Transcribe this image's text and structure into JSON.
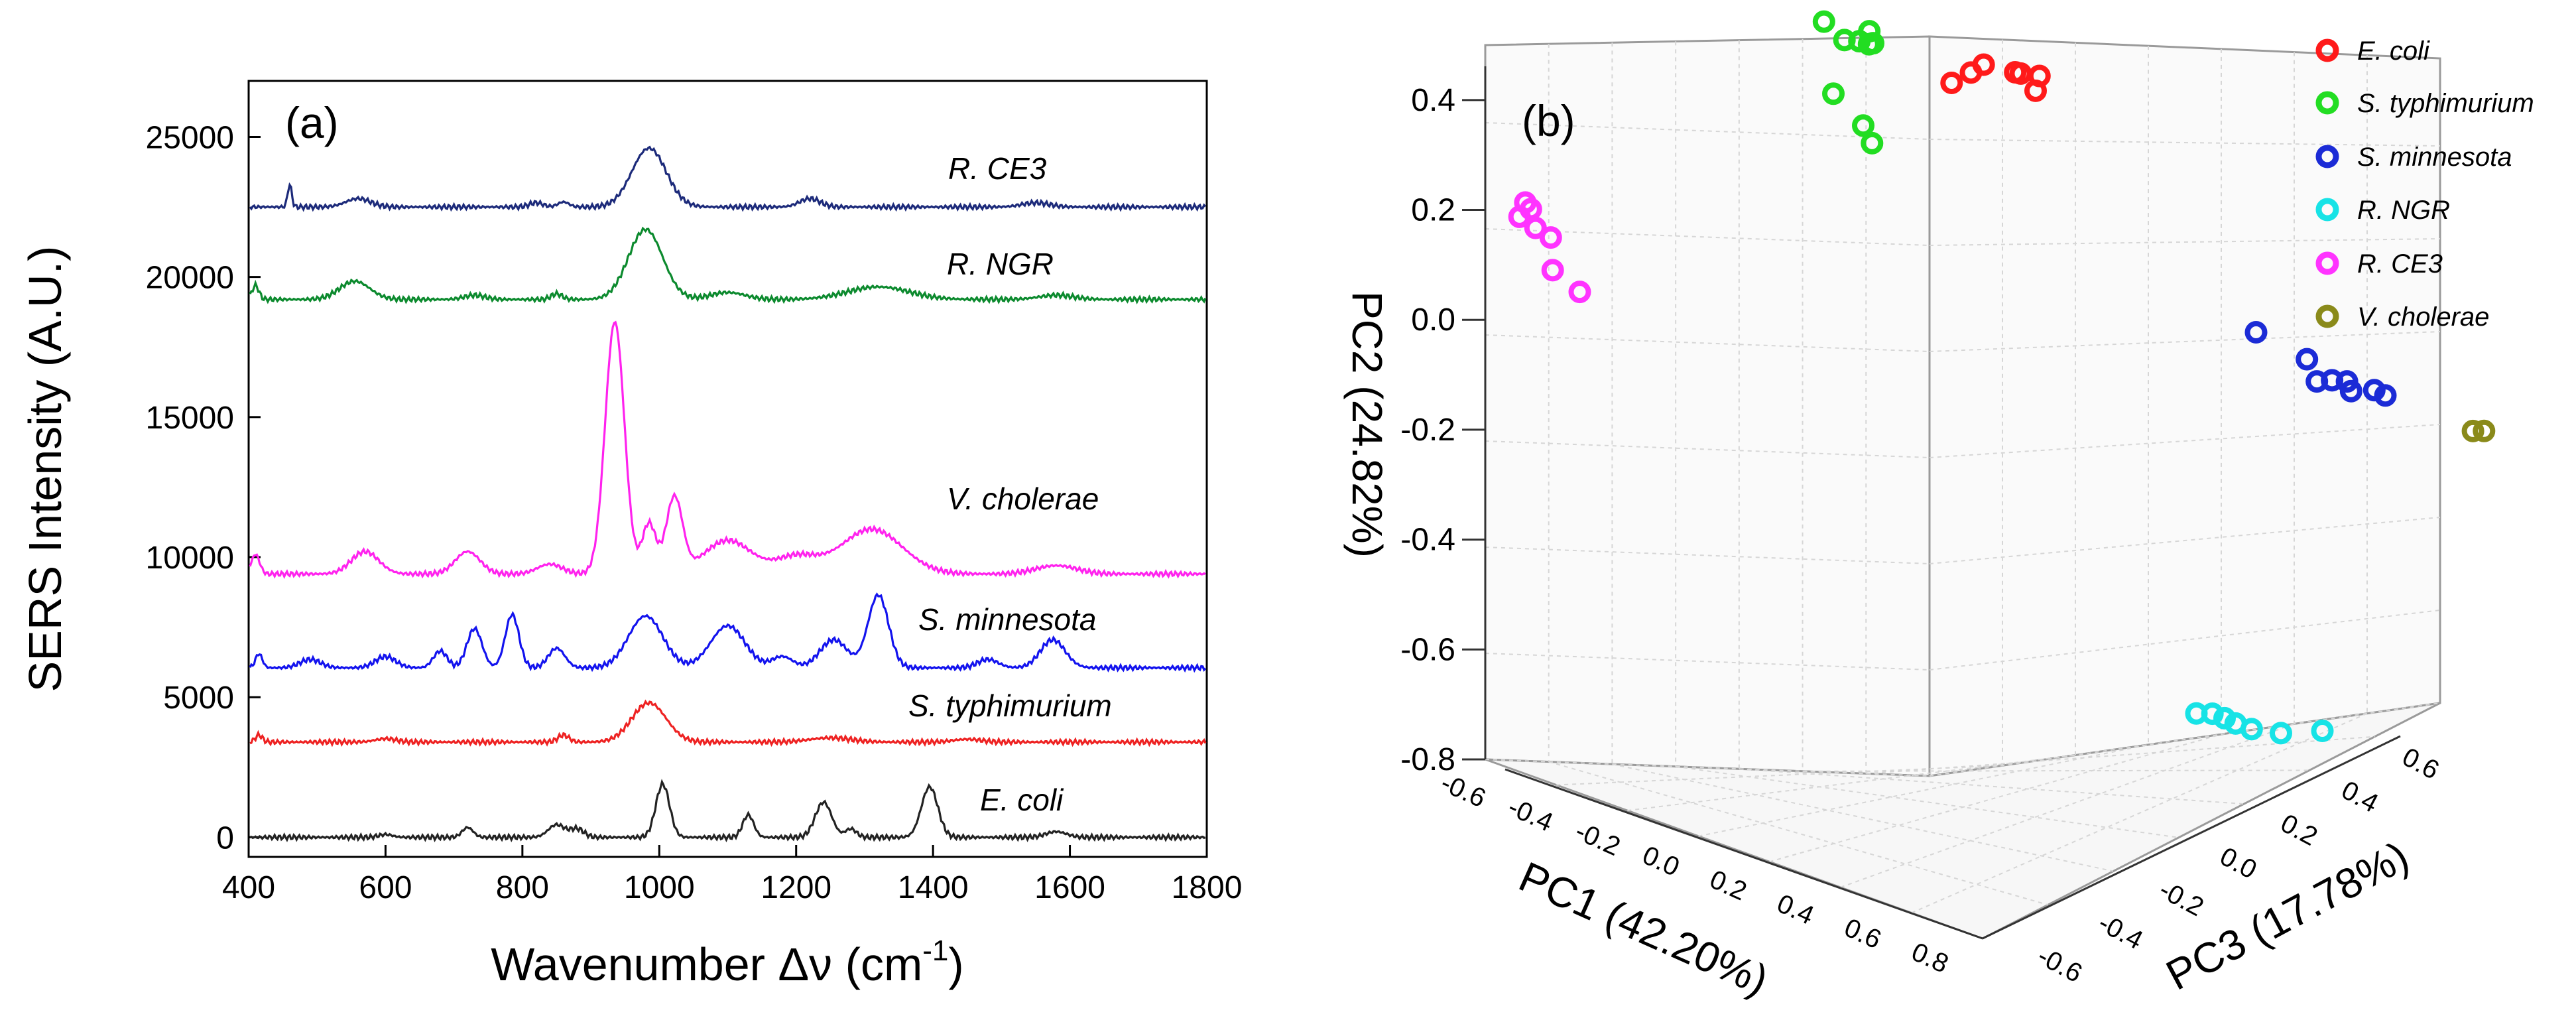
{
  "colors": {
    "ecoli": "#ff1a1a",
    "typhimurium": "#22dd22",
    "minnesota": "#1b2bd6",
    "ngr": "#17e3e6",
    "ce3": "#ff33ff",
    "cholerae": "#8a8a1a",
    "ce3_line": "#1c2a7a",
    "ngr_line": "#0c8a2e",
    "cholerae_line": "#ff22ee",
    "minnesota_line": "#1313ee",
    "typhimurium_line": "#ee2222",
    "ecoli_line": "#222222"
  },
  "chart_data": [
    {
      "type": "line",
      "panel_label": "(a)",
      "xlabel_main": "Wavenumber Δν (cm",
      "xlabel_sup": "-1",
      "xlabel_close": ")",
      "ylabel": "SERS Intensity (A.U.)",
      "xlim": [
        400,
        1800
      ],
      "ylim": [
        -700,
        27000
      ],
      "xticks": [
        "400",
        "600",
        "800",
        "1000",
        "1200",
        "1400",
        "1600",
        "1800"
      ],
      "yticks": [
        "0",
        "5000",
        "10000",
        "15000",
        "20000",
        "25000"
      ],
      "series": [
        {
          "name": "R. CE3",
          "color_key": "ce3_line",
          "baseline": 22500,
          "peaks": [
            [
              460,
              800,
              3
            ],
            [
              560,
              300,
              18
            ],
            [
              820,
              150,
              10
            ],
            [
              860,
              180,
              8
            ],
            [
              985,
              2100,
              25
            ],
            [
              1220,
              300,
              15
            ],
            [
              1550,
              150,
              20
            ]
          ]
        },
        {
          "name": "R. NGR",
          "color_key": "ngr_line",
          "baseline": 19200,
          "peaks": [
            [
              410,
              500,
              5
            ],
            [
              555,
              650,
              22
            ],
            [
              730,
              150,
              15
            ],
            [
              850,
              200,
              8
            ],
            [
              980,
              2500,
              25
            ],
            [
              1100,
              250,
              25
            ],
            [
              1320,
              450,
              45
            ],
            [
              1580,
              150,
              25
            ]
          ]
        },
        {
          "name": "V. cholerae",
          "color_key": "cholerae_line",
          "baseline": 9400,
          "peaks": [
            [
              410,
              700,
              6
            ],
            [
              570,
              800,
              20
            ],
            [
              720,
              800,
              18
            ],
            [
              840,
              350,
              18
            ],
            [
              935,
              9000,
              14
            ],
            [
              985,
              1800,
              10
            ],
            [
              1022,
              2700,
              12
            ],
            [
              1100,
              1200,
              35
            ],
            [
              1200,
              600,
              30
            ],
            [
              1310,
              1600,
              45
            ],
            [
              1580,
              300,
              30
            ]
          ]
        },
        {
          "name": "S. minnesota",
          "color_key": "minnesota_line",
          "baseline": 6050,
          "peaks": [
            [
              415,
              500,
              5
            ],
            [
              490,
              300,
              15
            ],
            [
              600,
              400,
              15
            ],
            [
              680,
              600,
              10
            ],
            [
              730,
              1400,
              11
            ],
            [
              785,
              1900,
              10
            ],
            [
              850,
              700,
              12
            ],
            [
              980,
              1850,
              25
            ],
            [
              1100,
              1500,
              25
            ],
            [
              1180,
              400,
              15
            ],
            [
              1255,
              1000,
              20
            ],
            [
              1320,
              2600,
              15
            ],
            [
              1480,
              300,
              15
            ],
            [
              1575,
              1000,
              18
            ]
          ]
        },
        {
          "name": "S. typhimurium",
          "color_key": "typhimurium_line",
          "baseline": 3400,
          "peaks": [
            [
              415,
              250,
              5
            ],
            [
              600,
              120,
              15
            ],
            [
              860,
              250,
              8
            ],
            [
              985,
              1400,
              25
            ],
            [
              1250,
              150,
              30
            ],
            [
              1450,
              100,
              20
            ]
          ]
        },
        {
          "name": "E. coli",
          "color_key": "ecoli_line",
          "baseline": 0,
          "peaks": [
            [
              600,
              100,
              10
            ],
            [
              720,
              350,
              8
            ],
            [
              850,
              450,
              12
            ],
            [
              880,
              300,
              10
            ],
            [
              1005,
              1900,
              10
            ],
            [
              1130,
              800,
              8
            ],
            [
              1240,
              1250,
              12
            ],
            [
              1280,
              300,
              8
            ],
            [
              1395,
              1800,
              12
            ],
            [
              1580,
              200,
              15
            ]
          ]
        }
      ],
      "series_labels": [
        "R. CE3",
        "R. NGR",
        "V. cholerae",
        "S. minnesota",
        "S. typhimurium",
        "E. coli"
      ]
    },
    {
      "type": "scatter",
      "subtype": "3d-scatter",
      "panel_label": "(b)",
      "xlabel": "PC1 (42.20%)",
      "ylabel": "PC2 (24.82%)",
      "zlabel": "PC3 (17.78%)",
      "pc1_range": [
        -0.6,
        0.8
      ],
      "pc2_range": [
        -0.8,
        0.5
      ],
      "pc3_range": [
        -0.6,
        0.6
      ],
      "pc2_ticks": [
        "-0.8",
        "-0.6",
        "-0.4",
        "-0.2",
        "0.0",
        "0.2",
        "0.4"
      ],
      "pc1_ticks": [
        "-0.6",
        "-0.4",
        "-0.2",
        "0.0",
        "0.2",
        "0.4",
        "0.6",
        "0.8"
      ],
      "pc3_ticks": [
        "-0.6",
        "-0.4",
        "-0.2",
        "0.0",
        "0.2",
        "0.4",
        "0.6"
      ],
      "legend": [
        {
          "name": "E. coli",
          "color_key": "ecoli"
        },
        {
          "name": "S. typhimurium",
          "color_key": "typhimurium"
        },
        {
          "name": "S. minnesota",
          "color_key": "minnesota"
        },
        {
          "name": "R. NGR",
          "color_key": "ngr"
        },
        {
          "name": "R. CE3",
          "color_key": "ce3"
        },
        {
          "name": "V. cholerae",
          "color_key": "cholerae"
        }
      ],
      "groups": [
        {
          "name": "E. coli",
          "color_key": "ecoli",
          "points": [
            [
              0.35,
              0.5,
              -0.62
            ],
            [
              0.28,
              0.52,
              -0.4
            ],
            [
              0.27,
              0.5,
              -0.28
            ],
            [
              0.23,
              0.5,
              -0.36
            ],
            [
              0.22,
              0.49,
              -0.18
            ],
            [
              0.25,
              0.46,
              -0.18
            ],
            [
              0.27,
              0.49,
              -0.2
            ]
          ]
        },
        {
          "name": "S. typhimurium",
          "color_key": "typhimurium",
          "points": [
            [
              -0.53,
              0.51,
              0.4
            ],
            [
              -0.55,
              0.47,
              0.5
            ],
            [
              -0.52,
              0.47,
              0.5
            ],
            [
              -0.5,
              0.49,
              0.5
            ],
            [
              -0.48,
              0.47,
              0.48
            ],
            [
              -0.47,
              0.47,
              0.45
            ],
            [
              -0.56,
              0.37,
              0.48
            ],
            [
              -0.39,
              0.33,
              0.3
            ],
            [
              -0.36,
              0.3,
              0.28
            ]
          ]
        },
        {
          "name": "S. minnesota",
          "color_key": "minnesota",
          "points": [
            [
              0.4,
              0.0,
              0.3
            ],
            [
              0.38,
              -0.06,
              0.5
            ],
            [
              0.4,
              -0.1,
              0.5
            ],
            [
              0.4,
              -0.1,
              0.55
            ],
            [
              0.43,
              -0.1,
              0.55
            ],
            [
              0.42,
              -0.12,
              0.58
            ],
            [
              0.43,
              -0.12,
              0.64
            ],
            [
              0.44,
              -0.13,
              0.66
            ]
          ]
        },
        {
          "name": "R. NGR",
          "color_key": "ngr",
          "points": [
            [
              0.28,
              -0.72,
              0.3
            ],
            [
              0.3,
              -0.72,
              0.32
            ],
            [
              0.3,
              -0.73,
              0.36
            ],
            [
              0.31,
              -0.74,
              0.38
            ],
            [
              0.33,
              -0.75,
              0.4
            ],
            [
              0.34,
              -0.76,
              0.48
            ],
            [
              0.35,
              -0.76,
              0.6
            ]
          ]
        },
        {
          "name": "R. CE3",
          "color_key": "ce3",
          "points": [
            [
              -0.55,
              0.21,
              -0.55
            ],
            [
              -0.6,
              0.19,
              -0.45
            ],
            [
              -0.58,
              0.18,
              -0.52
            ],
            [
              -0.56,
              0.16,
              -0.5
            ],
            [
              -0.56,
              0.14,
              -0.45
            ],
            [
              -0.55,
              0.08,
              -0.46
            ],
            [
              -0.52,
              0.04,
              -0.42
            ]
          ]
        },
        {
          "name": "V. cholerae",
          "color_key": "cholerae",
          "points": [
            [
              0.5,
              -0.2,
              0.85
            ],
            [
              0.51,
              -0.2,
              0.87
            ]
          ]
        }
      ]
    }
  ]
}
